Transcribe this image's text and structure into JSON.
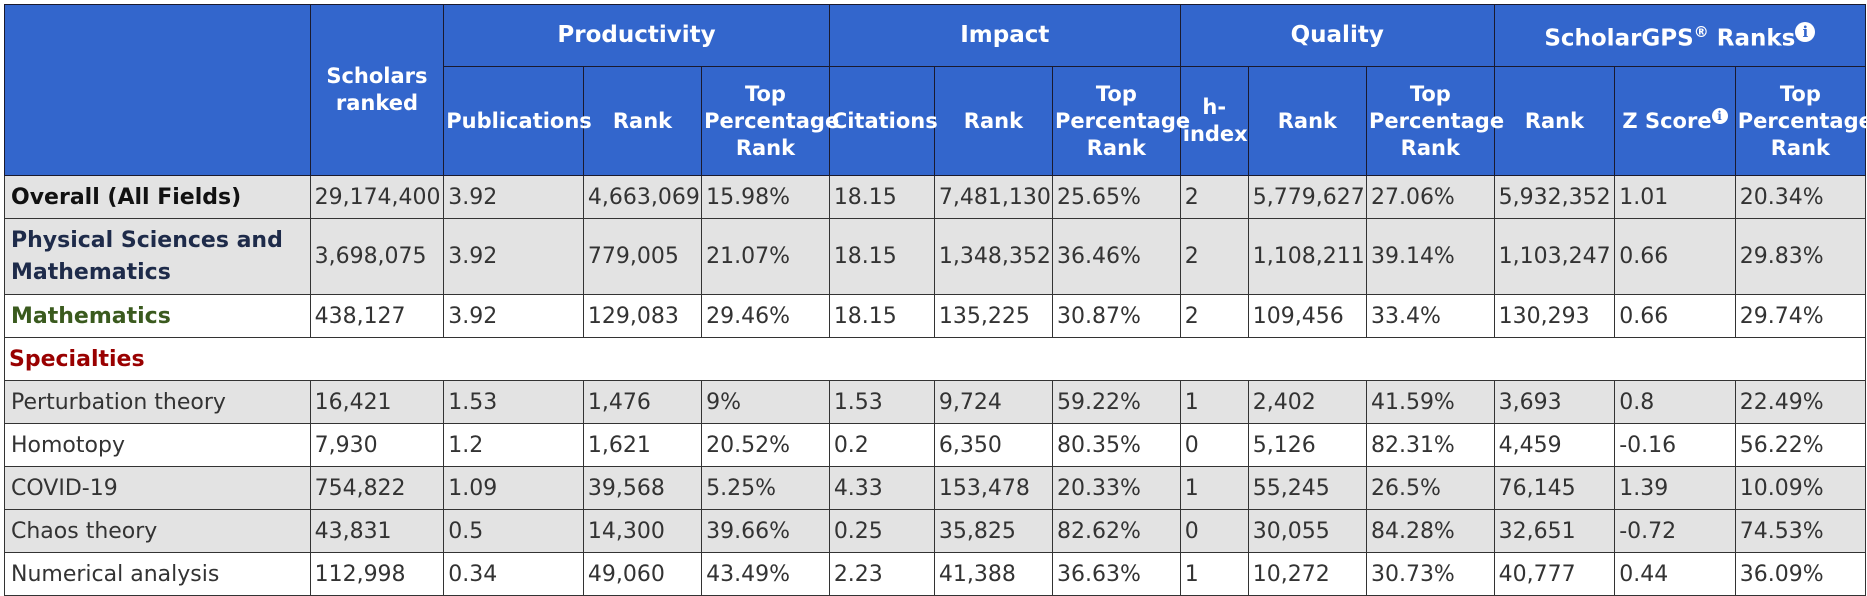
{
  "header": {
    "scholars_ranked": "Scholars ranked",
    "groups": {
      "productivity": "Productivity",
      "impact": "Impact",
      "quality": "Quality",
      "scholargps": "ScholarGPS",
      "scholargps_reg": "®",
      "scholargps_suffix": " Ranks"
    },
    "sub": {
      "publications": "Publications",
      "rank": "Rank",
      "top_pct": "Top Percentage Rank",
      "citations": "Citations",
      "h_index": "h-index",
      "z_score": "Z Score"
    },
    "info_glyph": "i"
  },
  "rows_main": [
    {
      "label": "Overall (All Fields)",
      "cls": "overall",
      "row": "gray",
      "cells": [
        "29,174,400",
        "3.92",
        "4,663,069",
        "15.98%",
        "18.15",
        "7,481,130",
        "25.65%",
        "2",
        "5,779,627",
        "27.06%",
        "5,932,352",
        "1.01",
        "20.34%"
      ]
    },
    {
      "label": "Physical Sciences and Mathematics",
      "cls": "phys",
      "row": "gray",
      "cells": [
        "3,698,075",
        "3.92",
        "779,005",
        "21.07%",
        "18.15",
        "1,348,352",
        "36.46%",
        "2",
        "1,108,211",
        "39.14%",
        "1,103,247",
        "0.66",
        "29.83%"
      ]
    },
    {
      "label": "Mathematics",
      "cls": "math",
      "row": "white",
      "cells": [
        "438,127",
        "3.92",
        "129,083",
        "29.46%",
        "18.15",
        "135,225",
        "30.87%",
        "2",
        "109,456",
        "33.4%",
        "130,293",
        "0.66",
        "29.74%"
      ]
    }
  ],
  "specialties_label": "Specialties",
  "rows_spec": [
    {
      "label": "Perturbation theory",
      "row": "gray",
      "cells": [
        "16,421",
        "1.53",
        "1,476",
        "9%",
        "1.53",
        "9,724",
        "59.22%",
        "1",
        "2,402",
        "41.59%",
        "3,693",
        "0.8",
        "22.49%"
      ]
    },
    {
      "label": "Homotopy",
      "row": "white",
      "cells": [
        "7,930",
        "1.2",
        "1,621",
        "20.52%",
        "0.2",
        "6,350",
        "80.35%",
        "0",
        "5,126",
        "82.31%",
        "4,459",
        "-0.16",
        "56.22%"
      ]
    },
    {
      "label": "COVID-19",
      "row": "gray",
      "cells": [
        "754,822",
        "1.09",
        "39,568",
        "5.25%",
        "4.33",
        "153,478",
        "20.33%",
        "1",
        "55,245",
        "26.5%",
        "76,145",
        "1.39",
        "10.09%"
      ]
    },
    {
      "label": "Chaos theory",
      "row": "gray",
      "cells": [
        "43,831",
        "0.5",
        "14,300",
        "39.66%",
        "0.25",
        "35,825",
        "82.62%",
        "0",
        "30,055",
        "84.28%",
        "32,651",
        "-0.72",
        "74.53%"
      ]
    },
    {
      "label": "Numerical analysis",
      "row": "white",
      "cells": [
        "112,998",
        "0.34",
        "49,060",
        "43.49%",
        "2.23",
        "41,388",
        "36.63%",
        "1",
        "10,272",
        "30.73%",
        "40,777",
        "0.44",
        "36.09%"
      ]
    }
  ]
}
